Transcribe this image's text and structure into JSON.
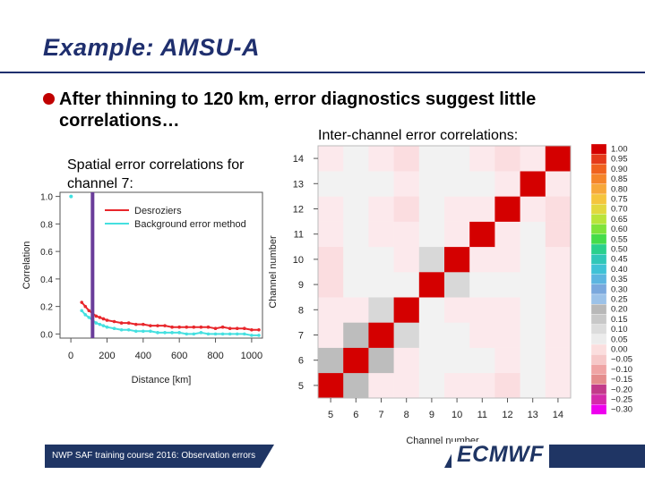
{
  "slide": {
    "title": "Example: AMSU-A",
    "bullet": "After thinning to 120 km, error diagnostics suggest little correlations…",
    "left_caption": "Spatial error correlations for channel 7:",
    "right_caption": "Inter-channel error correlations:",
    "footer": "NWP SAF training course 2016: Observation errors",
    "logo": "ECMWF",
    "colors": {
      "title": "#1f2f6e",
      "bullet": "#c00000",
      "footer_bg": "#1f3564"
    }
  },
  "chart_data": [
    {
      "type": "line",
      "xlabel": "Distance [km]",
      "ylabel": "Correlation",
      "xlim": [
        -60,
        1060
      ],
      "ylim": [
        -0.03,
        1.03
      ],
      "xticks": [
        "0",
        "200",
        "400",
        "600",
        "800",
        "1000"
      ],
      "yticks": [
        "0.0",
        "0.2",
        "0.4",
        "0.6",
        "0.8",
        "1.0"
      ],
      "legend_position": "top-right",
      "marker": {
        "x": 1,
        "y": 1.0,
        "color": "#40e0e0"
      },
      "vline": {
        "x": 120,
        "color": "#6a3d9a"
      },
      "series": [
        {
          "name": "Desroziers",
          "color": "#e8262b",
          "x": [
            60,
            80,
            100,
            120,
            140,
            160,
            180,
            200,
            240,
            280,
            320,
            360,
            400,
            440,
            480,
            520,
            560,
            600,
            640,
            680,
            720,
            760,
            800,
            840,
            880,
            920,
            960,
            1000,
            1040
          ],
          "y": [
            0.23,
            0.2,
            0.17,
            0.15,
            0.13,
            0.12,
            0.11,
            0.1,
            0.09,
            0.08,
            0.08,
            0.07,
            0.07,
            0.06,
            0.06,
            0.06,
            0.05,
            0.05,
            0.05,
            0.05,
            0.05,
            0.05,
            0.04,
            0.05,
            0.04,
            0.04,
            0.04,
            0.03,
            0.03
          ]
        },
        {
          "name": "Background error method",
          "color": "#45e0e0",
          "x": [
            60,
            80,
            100,
            120,
            140,
            160,
            180,
            200,
            240,
            280,
            320,
            360,
            400,
            440,
            480,
            520,
            560,
            600,
            640,
            680,
            720,
            760,
            800,
            840,
            880,
            920,
            960,
            1000,
            1040
          ],
          "y": [
            0.17,
            0.14,
            0.12,
            0.1,
            0.08,
            0.07,
            0.06,
            0.05,
            0.04,
            0.03,
            0.03,
            0.02,
            0.02,
            0.02,
            0.01,
            0.01,
            0.01,
            0.01,
            0.0,
            0.0,
            0.01,
            0.0,
            0.0,
            0.0,
            0.0,
            0.0,
            0.0,
            -0.01,
            -0.01
          ]
        }
      ]
    },
    {
      "type": "heatmap",
      "xlabel": "Channel number",
      "ylabel": "Channel number",
      "channels": [
        "5",
        "6",
        "7",
        "8",
        "9",
        "10",
        "11",
        "12",
        "13",
        "14"
      ],
      "values": [
        [
          1.0,
          0.2,
          0.03,
          0.05,
          0.0,
          0.05,
          0.03,
          0.08,
          0.0,
          0.03
        ],
        [
          0.2,
          1.0,
          0.2,
          0.03,
          0.0,
          0.0,
          0.0,
          0.03,
          0.0,
          0.03
        ],
        [
          0.03,
          0.2,
          1.0,
          0.15,
          0.0,
          0.0,
          0.03,
          0.03,
          0.0,
          0.03
        ],
        [
          0.05,
          0.03,
          0.15,
          1.0,
          0.0,
          0.03,
          0.03,
          0.03,
          0.0,
          0.03
        ],
        [
          0.08,
          0.0,
          0.0,
          0.0,
          1.0,
          0.12,
          0.0,
          0.0,
          0.0,
          0.03
        ],
        [
          0.08,
          0.0,
          0.0,
          0.03,
          0.12,
          1.0,
          0.03,
          0.03,
          0.0,
          0.03
        ],
        [
          0.03,
          0.0,
          0.03,
          0.03,
          0.0,
          0.03,
          1.0,
          0.03,
          0.0,
          0.08
        ],
        [
          0.03,
          0.0,
          0.03,
          0.08,
          0.0,
          0.03,
          0.03,
          1.0,
          0.03,
          0.08
        ],
        [
          0.0,
          0.0,
          0.0,
          0.03,
          0.0,
          0.0,
          0.0,
          0.03,
          1.0,
          0.03
        ],
        [
          0.05,
          0.0,
          0.03,
          0.08,
          0.0,
          0.0,
          0.03,
          0.08,
          0.03,
          1.0
        ]
      ],
      "colorbar": {
        "labels": [
          "1.00",
          "0.95",
          "0.90",
          "0.85",
          "0.80",
          "0.75",
          "0.70",
          "0.65",
          "0.60",
          "0.55",
          "0.50",
          "0.45",
          "0.40",
          "0.35",
          "0.30",
          "0.25",
          "0.20",
          "0.15",
          "0.10",
          "0.05",
          "0.00",
          "−0.05",
          "−0.10",
          "−0.15",
          "−0.20",
          "−0.25",
          "−0.30"
        ],
        "colors": [
          "#d40000",
          "#e53a1a",
          "#f0621e",
          "#f5852a",
          "#f7a83a",
          "#f5c53d",
          "#e2d83e",
          "#b9e43a",
          "#7fe33a",
          "#45dc4a",
          "#2ad08c",
          "#30c7b8",
          "#3fc2d6",
          "#5cb5e0",
          "#7aa8dd",
          "#9cc2e8",
          "#b8b8b8",
          "#c8c8c8",
          "#dcdcdc",
          "#ececec",
          "#fbdede",
          "#f6c8c8",
          "#efa4a4",
          "#e48c8c",
          "#c23a8a",
          "#d42aaa",
          "#ee00ee"
        ]
      }
    }
  ]
}
